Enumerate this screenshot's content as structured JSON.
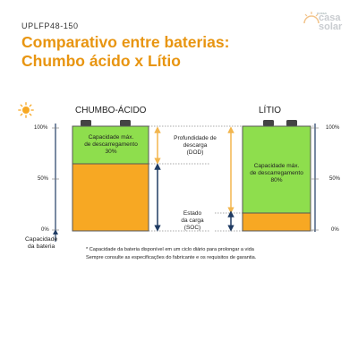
{
  "header": {
    "code": "UPLFP48-150",
    "title_line1": "Comparativo entre baterias:",
    "title_line2": "Chumbo ácido x Lítio"
  },
  "logo": {
    "small": "nossa",
    "line1": "casa",
    "line2": "solar"
  },
  "lead_acid": {
    "label": "CHUMBO-ÁCIDO",
    "box_text_line1": "Capacidade máx.",
    "box_text_line2": "de descarregamento",
    "box_text_line3": "30%",
    "dod_fraction": 0.3,
    "axis": [
      "100%",
      "50%",
      "0%"
    ]
  },
  "lithium": {
    "label": "LÍTIO",
    "box_text_line1": "Capacidade máx.",
    "box_text_line2": "de descarregamento",
    "box_text_line3": "80%",
    "dod_fraction": 0.8,
    "axis": [
      "100%",
      "50%",
      "0%"
    ]
  },
  "middle": {
    "dod_line1": "Profundidade de",
    "dod_line2": "descarga",
    "dod_line3": "(DOD)",
    "soc_line1": "Estado",
    "soc_line2": "da carga",
    "soc_line3": "(SOC)"
  },
  "capacity_label_line1": "Capacidade",
  "capacity_label_line2": "da bateria",
  "footnote_line1": "* Capacidade da bateria disponível em um ciclo diário para prolongar a vida",
  "footnote_line2": "Sempre consulte as especificações do fabricante e os requisitos de garantia.",
  "colors": {
    "orange": "#f7a823",
    "green": "#8ede4d",
    "title": "#e89511",
    "arrow_orange": "#f2b64e",
    "arrow_navy": "#1f3b63"
  }
}
